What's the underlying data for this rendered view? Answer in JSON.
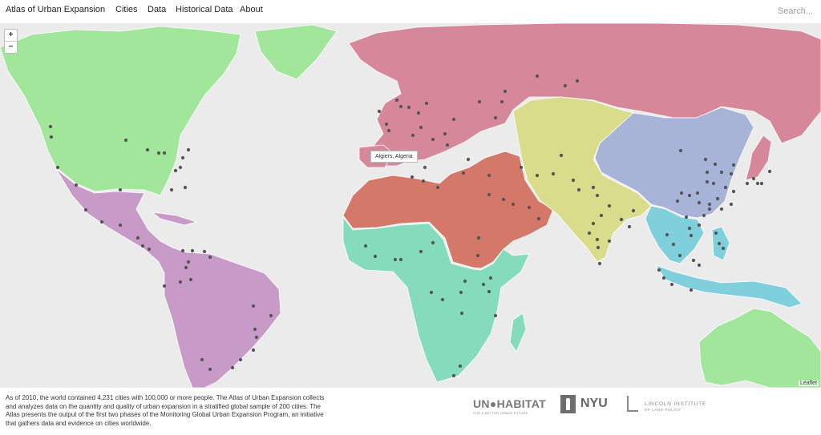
{
  "nav": {
    "brand": "Atlas of Urban Expansion",
    "links": [
      "Cities",
      "Data",
      "Historical Data",
      "About"
    ],
    "search_placeholder": "Search..."
  },
  "map": {
    "zoom_in": "+",
    "zoom_out": "−",
    "tooltip": "Algiers, Algeria",
    "attribution": "Leaflet",
    "region_colors": {
      "Land-Rich Developed Countries": "#a1e69b",
      "Europe and Japan": "#d7879a",
      "Latin America and the Caribbean": "#c89ac7",
      "Sub-Saharan Africa": "#85dcbc",
      "Western Asia": "#d4786a",
      "South and Central Asia": "#d9dc8a",
      "East Asia and the Pacific": "#a8b3d8",
      "Southeast Asia": "#80cfdc"
    },
    "city_marker_color": "#555555"
  },
  "footer": {
    "description": "As of 2010, the world contained 4,231 cities with 100,000 or more people. The Atlas of Urban Expansion collects and analyzes data on the quantity and quality of urban expansion in a stratified global sample of 200 cities. The Atlas presents the output of the first two phases of the Monitoring Global Urban Expansion Program, an initiative that gathers data and evidence on cities worldwide.",
    "logo_unhabitat": "UN●HABITAT",
    "logo_unhabitat_tagline": "FOR A BETTER URBAN FUTURE",
    "logo_nyu": "NYU",
    "logo_lincoln": "LINCOLN INSTITUTE",
    "logo_lincoln_sub": "OF LAND POLICY"
  }
}
